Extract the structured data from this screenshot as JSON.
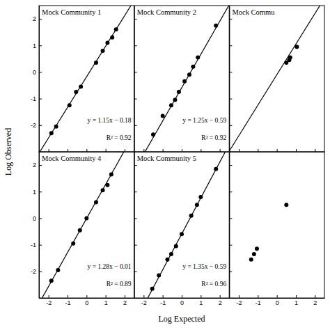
{
  "chart_data": {
    "type": "scatter",
    "xlabel": "Log Expected",
    "ylabel": "Log Observed",
    "xlim": [
      -2.5,
      2.5
    ],
    "ylim": [
      -3.0,
      2.5
    ],
    "xticks": [
      -2,
      -1,
      0,
      1,
      2
    ],
    "yticks": [
      -2,
      -1,
      0,
      1,
      2
    ],
    "color": "black",
    "panels": [
      {
        "title": "Mock Community 1",
        "annotations": [
          "y = 1.15x − 0.18",
          "R² = 0.92"
        ],
        "slope": 1.15,
        "intercept": -0.18,
        "x": [
          -1.85,
          -1.6,
          -0.9,
          -0.55,
          -0.3,
          0.5,
          0.85,
          1.1,
          1.35,
          1.55
        ],
        "y": [
          -2.3,
          -2.05,
          -1.25,
          -0.75,
          -0.55,
          0.35,
          0.8,
          1.1,
          1.3,
          1.6
        ],
        "tick_labels": "y"
      },
      {
        "title": "Mock Community 2",
        "annotations": [
          "y = 1.25x − 0.59",
          "R² = 0.92"
        ],
        "slope": 1.25,
        "intercept": -0.59,
        "x": [
          -1.5,
          -1.0,
          -0.55,
          -0.35,
          -0.15,
          0.15,
          0.4,
          0.6,
          0.85,
          1.8
        ],
        "y": [
          -2.35,
          -1.65,
          -1.25,
          -1.05,
          -0.75,
          -0.35,
          -0.1,
          0.2,
          0.55,
          1.75
        ],
        "tick_labels": false
      },
      {
        "title": "Mock Commu",
        "slope": 1.15,
        "intercept": -0.1,
        "x": [
          0.5,
          0.65,
          0.7,
          1.05
        ],
        "y": [
          0.35,
          0.45,
          0.55,
          0.95
        ],
        "tick_labels": false
      },
      {
        "title": "Mock Community 4",
        "annotations": [
          "y = 1.28x − 0.01",
          "R² = 0.89"
        ],
        "slope": 1.28,
        "intercept": -0.01,
        "x": [
          -1.85,
          -1.5,
          -0.7,
          -0.35,
          0.0,
          0.5,
          0.85,
          1.1,
          1.3
        ],
        "y": [
          -2.35,
          -1.95,
          -0.95,
          -0.45,
          0.0,
          0.6,
          1.05,
          1.25,
          1.65
        ]
      },
      {
        "title": "Mock Community 5",
        "annotations": [
          "y = 1.35x − 0.59",
          "R² = 0.96"
        ],
        "slope": 1.35,
        "intercept": -0.59,
        "x": [
          -1.55,
          -1.2,
          -0.75,
          -0.55,
          -0.3,
          0.0,
          0.5,
          0.8,
          1.0,
          1.8
        ],
        "y": [
          -2.65,
          -2.15,
          -1.55,
          -1.35,
          -1.05,
          -0.6,
          0.1,
          0.5,
          0.8,
          1.85
        ],
        "tick_labels": "x"
      },
      {
        "x": [
          -1.35,
          -1.2,
          -1.05,
          0.5
        ],
        "y": [
          -1.55,
          -1.35,
          -1.15,
          0.5
        ],
        "tick_labels": "x"
      }
    ]
  }
}
